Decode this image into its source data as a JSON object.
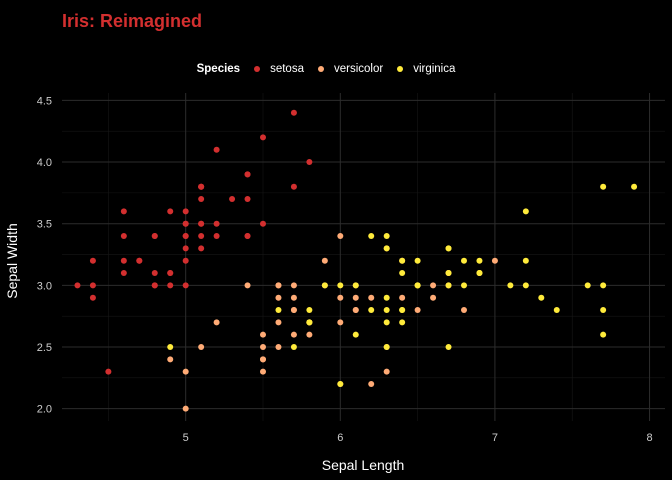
{
  "chart_data": {
    "type": "scatter",
    "title": "Iris: Reimagined",
    "xlabel": "Sepal Length",
    "ylabel": "Sepal Width",
    "xlim": [
      4.2,
      8.1
    ],
    "ylim": [
      1.9,
      4.56
    ],
    "xticks": [
      5,
      6,
      7,
      8
    ],
    "yticks": [
      2.0,
      2.5,
      3.0,
      3.5,
      4.0,
      4.5
    ],
    "xtick_labels": [
      "5",
      "6",
      "7",
      "8"
    ],
    "ytick_labels": [
      "2.0",
      "2.5",
      "3.0",
      "3.5",
      "4.0",
      "4.5"
    ],
    "grid": true,
    "legend": {
      "title": "Species",
      "placement": "top-center"
    },
    "series": [
      {
        "name": "setosa",
        "color": "#d32f2f",
        "points": [
          [
            5.1,
            3.5
          ],
          [
            4.9,
            3.0
          ],
          [
            4.7,
            3.2
          ],
          [
            4.6,
            3.1
          ],
          [
            5.0,
            3.6
          ],
          [
            5.4,
            3.9
          ],
          [
            4.6,
            3.4
          ],
          [
            5.0,
            3.4
          ],
          [
            4.4,
            2.9
          ],
          [
            4.9,
            3.1
          ],
          [
            5.4,
            3.7
          ],
          [
            4.8,
            3.4
          ],
          [
            4.8,
            3.0
          ],
          [
            4.3,
            3.0
          ],
          [
            5.8,
            4.0
          ],
          [
            5.7,
            4.4
          ],
          [
            5.4,
            3.9
          ],
          [
            5.1,
            3.5
          ],
          [
            5.7,
            3.8
          ],
          [
            5.1,
            3.8
          ],
          [
            5.4,
            3.4
          ],
          [
            5.1,
            3.7
          ],
          [
            4.6,
            3.6
          ],
          [
            5.1,
            3.3
          ],
          [
            4.8,
            3.4
          ],
          [
            5.0,
            3.0
          ],
          [
            5.0,
            3.4
          ],
          [
            5.2,
            3.5
          ],
          [
            5.2,
            3.4
          ],
          [
            4.7,
            3.2
          ],
          [
            4.8,
            3.1
          ],
          [
            5.4,
            3.4
          ],
          [
            5.2,
            4.1
          ],
          [
            5.5,
            4.2
          ],
          [
            4.9,
            3.1
          ],
          [
            5.0,
            3.2
          ],
          [
            5.5,
            3.5
          ],
          [
            4.9,
            3.6
          ],
          [
            4.4,
            3.0
          ],
          [
            5.1,
            3.4
          ],
          [
            5.0,
            3.5
          ],
          [
            4.5,
            2.3
          ],
          [
            4.4,
            3.2
          ],
          [
            5.0,
            3.5
          ],
          [
            5.1,
            3.8
          ],
          [
            4.8,
            3.0
          ],
          [
            5.1,
            3.8
          ],
          [
            4.6,
            3.2
          ],
          [
            5.3,
            3.7
          ],
          [
            5.0,
            3.3
          ]
        ]
      },
      {
        "name": "versicolor",
        "color": "#ffab76",
        "points": [
          [
            7.0,
            3.2
          ],
          [
            6.4,
            3.2
          ],
          [
            6.9,
            3.1
          ],
          [
            5.5,
            2.3
          ],
          [
            6.5,
            2.8
          ],
          [
            5.7,
            2.8
          ],
          [
            6.3,
            3.3
          ],
          [
            4.9,
            2.4
          ],
          [
            6.6,
            2.9
          ],
          [
            5.2,
            2.7
          ],
          [
            5.0,
            2.0
          ],
          [
            5.9,
            3.0
          ],
          [
            6.0,
            2.2
          ],
          [
            6.1,
            2.9
          ],
          [
            5.6,
            2.9
          ],
          [
            6.7,
            3.1
          ],
          [
            5.6,
            3.0
          ],
          [
            5.8,
            2.7
          ],
          [
            6.2,
            2.2
          ],
          [
            5.6,
            2.5
          ],
          [
            5.9,
            3.2
          ],
          [
            6.1,
            2.8
          ],
          [
            6.3,
            2.5
          ],
          [
            6.1,
            2.8
          ],
          [
            6.4,
            2.9
          ],
          [
            6.6,
            3.0
          ],
          [
            6.8,
            2.8
          ],
          [
            6.7,
            3.0
          ],
          [
            6.0,
            2.9
          ],
          [
            5.7,
            2.6
          ],
          [
            5.5,
            2.4
          ],
          [
            5.5,
            2.4
          ],
          [
            5.8,
            2.7
          ],
          [
            6.0,
            2.7
          ],
          [
            5.4,
            3.0
          ],
          [
            6.0,
            3.4
          ],
          [
            6.7,
            3.1
          ],
          [
            6.3,
            2.3
          ],
          [
            5.6,
            3.0
          ],
          [
            5.5,
            2.5
          ],
          [
            5.5,
            2.6
          ],
          [
            6.1,
            3.0
          ],
          [
            5.8,
            2.6
          ],
          [
            5.0,
            2.3
          ],
          [
            5.6,
            2.7
          ],
          [
            5.7,
            3.0
          ],
          [
            5.7,
            2.9
          ],
          [
            6.2,
            2.9
          ],
          [
            5.1,
            2.5
          ],
          [
            5.7,
            2.8
          ]
        ]
      },
      {
        "name": "virginica",
        "color": "#ffeb3b",
        "points": [
          [
            6.3,
            3.3
          ],
          [
            5.8,
            2.7
          ],
          [
            7.1,
            3.0
          ],
          [
            6.3,
            2.9
          ],
          [
            6.5,
            3.0
          ],
          [
            7.6,
            3.0
          ],
          [
            4.9,
            2.5
          ],
          [
            7.3,
            2.9
          ],
          [
            6.7,
            2.5
          ],
          [
            7.2,
            3.6
          ],
          [
            6.5,
            3.2
          ],
          [
            6.4,
            2.7
          ],
          [
            6.8,
            3.0
          ],
          [
            5.7,
            2.5
          ],
          [
            5.8,
            2.8
          ],
          [
            6.4,
            3.2
          ],
          [
            6.5,
            3.0
          ],
          [
            7.7,
            3.8
          ],
          [
            7.7,
            2.6
          ],
          [
            6.0,
            2.2
          ],
          [
            6.9,
            3.2
          ],
          [
            5.6,
            2.8
          ],
          [
            7.7,
            2.8
          ],
          [
            6.3,
            2.7
          ],
          [
            6.7,
            3.3
          ],
          [
            7.2,
            3.2
          ],
          [
            6.2,
            2.8
          ],
          [
            6.1,
            3.0
          ],
          [
            6.4,
            2.8
          ],
          [
            7.2,
            3.0
          ],
          [
            7.4,
            2.8
          ],
          [
            7.9,
            3.8
          ],
          [
            6.4,
            2.8
          ],
          [
            6.3,
            2.8
          ],
          [
            6.1,
            2.6
          ],
          [
            7.7,
            3.0
          ],
          [
            6.3,
            3.4
          ],
          [
            6.4,
            3.1
          ],
          [
            6.0,
            3.0
          ],
          [
            6.9,
            3.1
          ],
          [
            6.7,
            3.1
          ],
          [
            6.9,
            3.1
          ],
          [
            5.8,
            2.7
          ],
          [
            6.8,
            3.2
          ],
          [
            6.7,
            3.3
          ],
          [
            6.7,
            3.0
          ],
          [
            6.3,
            2.5
          ],
          [
            6.5,
            3.0
          ],
          [
            6.2,
            3.4
          ],
          [
            5.9,
            3.0
          ]
        ]
      }
    ]
  }
}
